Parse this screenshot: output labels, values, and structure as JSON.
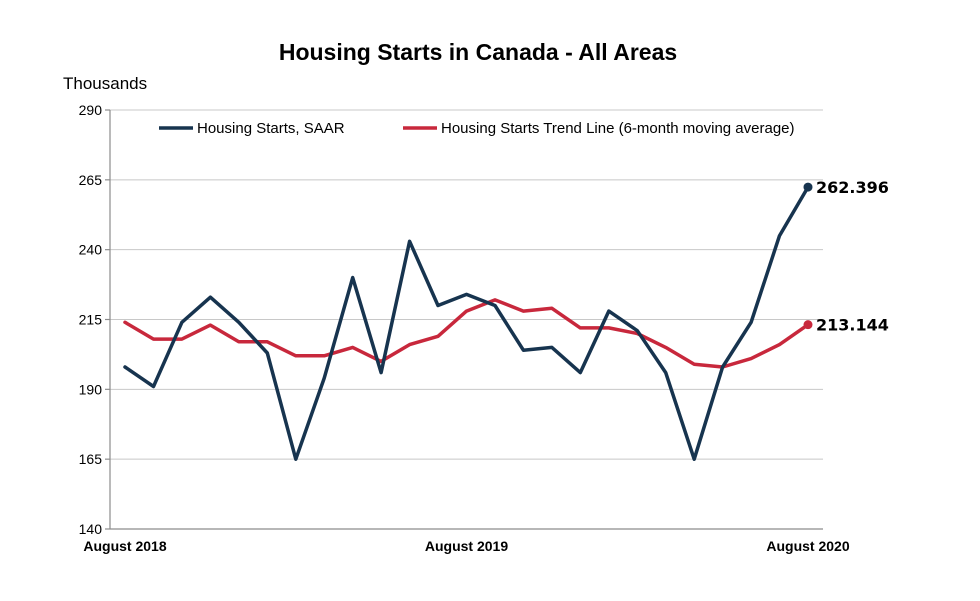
{
  "chart_data": {
    "type": "line",
    "title": "Housing Starts in Canada - All Areas",
    "ylabel": "Thousands",
    "ylim": [
      140,
      290
    ],
    "yticks": [
      140,
      165,
      190,
      215,
      240,
      265,
      290
    ],
    "x_tick_labels": [
      {
        "index": 0,
        "label": "August 2018"
      },
      {
        "index": 12,
        "label": "August 2019"
      },
      {
        "index": 24,
        "label": "August 2020"
      }
    ],
    "grid": true,
    "legend_position": "top",
    "series": [
      {
        "name": "Housing Starts, SAAR",
        "color": "#17344f",
        "values": [
          198,
          191,
          214,
          223,
          214,
          203,
          165,
          194,
          230,
          196,
          243,
          220,
          224,
          220,
          204,
          205,
          196,
          218,
          211,
          196,
          165,
          198,
          214,
          245,
          262.396
        ],
        "end_label": "262.396"
      },
      {
        "name": "Housing Starts Trend Line (6-month moving average)",
        "color": "#c8283c",
        "values": [
          214,
          208,
          208,
          213,
          207,
          207,
          202,
          202,
          205,
          200,
          206,
          209,
          218,
          222,
          218,
          219,
          212,
          212,
          210,
          205,
          199,
          198,
          201,
          206,
          213.144
        ],
        "end_label": "213.144"
      }
    ]
  }
}
